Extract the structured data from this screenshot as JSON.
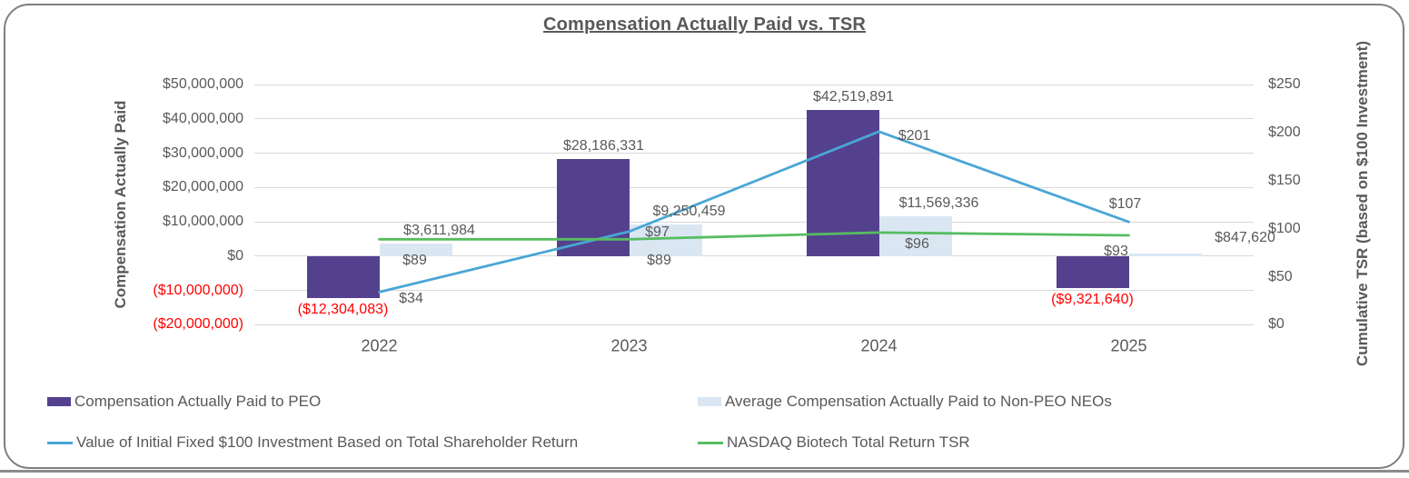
{
  "title": "Compensation Actually Paid vs. TSR",
  "chart_data": {
    "type": "combo-bar-line",
    "title": "Compensation Actually Paid vs. TSR",
    "categories": [
      "2022",
      "2023",
      "2024",
      "2025"
    ],
    "left_axis": {
      "title": "Compensation Actually Paid",
      "min": -20000000,
      "max": 50000000,
      "tick_step": 10000000,
      "tick_labels": [
        "$50,000,000",
        "$40,000,000",
        "$30,000,000",
        "$20,000,000",
        "$10,000,000",
        "$0",
        "($10,000,000)",
        "($20,000,000)"
      ],
      "tick_values": [
        50000000,
        40000000,
        30000000,
        20000000,
        10000000,
        0,
        -10000000,
        -20000000
      ]
    },
    "right_axis": {
      "title": "Cumulative TSR (based on $100 Investment)",
      "min": 0,
      "max": 250,
      "tick_labels": [
        "$250",
        "$200",
        "$150",
        "$100",
        "$50",
        "$0"
      ],
      "tick_values": [
        250,
        200,
        150,
        100,
        50,
        0
      ]
    },
    "grid": true,
    "legend_position": "bottom",
    "series": [
      {
        "name": "Compensation Actually Paid to PEO",
        "type": "bar",
        "axis": "left",
        "color": "#54418e",
        "values": [
          -12304083,
          28186331,
          42519891,
          -9321640
        ],
        "labels": [
          "($12,304,083)",
          "$28,186,331",
          "$42,519,891",
          "($9,321,640)"
        ]
      },
      {
        "name": "Average Compensation Actually Paid to Non-PEO NEOs",
        "type": "bar",
        "axis": "left",
        "color": "#dae7f3",
        "values": [
          3611984,
          9250459,
          11569336,
          847620
        ],
        "labels": [
          "$3,611,984",
          "$9,250,459",
          "$11,569,336",
          "$847,620"
        ]
      },
      {
        "name": "Value of Initial Fixed $100 Investment Based on Total Shareholder Return",
        "type": "line",
        "axis": "right",
        "color": "#4aa6d5",
        "values": [
          34,
          97,
          201,
          107
        ],
        "labels": [
          "$34",
          "$97",
          "$201",
          "$107"
        ]
      },
      {
        "name": "NASDAQ Biotech Total Return TSR",
        "type": "line",
        "axis": "right",
        "color": "#57bd61",
        "values": [
          89,
          89,
          96,
          93
        ],
        "labels": [
          "$89",
          "$89",
          "$96",
          "$93"
        ]
      }
    ],
    "colors": {
      "text": "#595959",
      "negative_label": "#ff0000",
      "gridline": "#d9d9d9",
      "frame_border": "#7f7f7f"
    }
  }
}
